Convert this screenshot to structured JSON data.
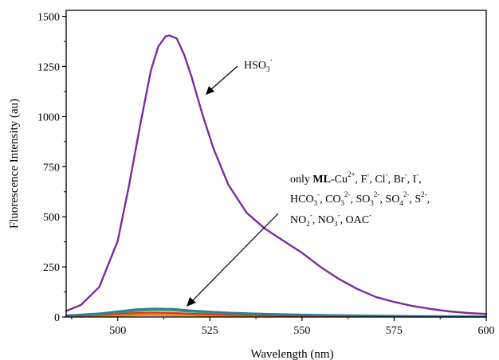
{
  "chart_data": {
    "type": "line",
    "xlabel": "Wavelength (nm)",
    "ylabel": "Fluorescence Intensity (au)",
    "xlim": [
      486,
      600
    ],
    "ylim": [
      0,
      1530
    ],
    "x_ticks": [
      500,
      525,
      550,
      575,
      600
    ],
    "y_ticks": [
      0,
      250,
      500,
      750,
      1000,
      1250,
      1500
    ],
    "grid": false,
    "series": [
      {
        "name": "HSO3-",
        "color": "#7b2c9e",
        "x": [
          486,
          490,
          495,
          500,
          503,
          506,
          509,
          511,
          513,
          514,
          516,
          518,
          520,
          523,
          526,
          530,
          535,
          540,
          545,
          550,
          555,
          560,
          565,
          570,
          575,
          580,
          585,
          590,
          595,
          600
        ],
        "y": [
          30,
          60,
          150,
          380,
          650,
          950,
          1230,
          1350,
          1400,
          1405,
          1390,
          1310,
          1200,
          1010,
          840,
          660,
          520,
          440,
          380,
          320,
          250,
          190,
          140,
          100,
          75,
          55,
          40,
          28,
          20,
          15
        ]
      },
      {
        "name": "",
        "color": "#2a7a9c",
        "x": [
          486,
          495,
          500,
          505,
          510,
          515,
          520,
          530,
          540,
          550,
          560,
          570,
          580,
          590,
          600
        ],
        "y": [
          8,
          18,
          28,
          38,
          42,
          40,
          32,
          22,
          16,
          12,
          9,
          7,
          5,
          4,
          3
        ]
      },
      {
        "name": "",
        "color": "#3a9a6a",
        "x": [
          486,
          495,
          500,
          505,
          510,
          515,
          520,
          530,
          540,
          550,
          560,
          570,
          580,
          590,
          600
        ],
        "y": [
          6,
          14,
          22,
          30,
          34,
          32,
          26,
          18,
          13,
          10,
          8,
          6,
          4,
          3,
          2
        ]
      },
      {
        "name": "",
        "color": "#e0301e",
        "x": [
          486,
          495,
          500,
          505,
          510,
          515,
          520,
          530,
          540,
          550,
          560,
          570,
          580,
          590,
          600
        ],
        "y": [
          4,
          10,
          15,
          20,
          22,
          20,
          16,
          11,
          8,
          6,
          5,
          4,
          3,
          2,
          2
        ]
      },
      {
        "name": "",
        "color": "#f08a1c",
        "x": [
          486,
          495,
          500,
          505,
          510,
          515,
          520,
          530,
          540,
          550,
          560,
          570,
          580,
          590,
          600
        ],
        "y": [
          3,
          6,
          9,
          12,
          13,
          12,
          10,
          7,
          5,
          4,
          3,
          3,
          2,
          2,
          1
        ]
      },
      {
        "name": "",
        "color": "#c8a02a",
        "x": [
          486,
          495,
          500,
          505,
          510,
          515,
          520,
          530,
          540,
          550,
          560,
          570,
          580,
          590,
          600
        ],
        "y": [
          2,
          4,
          6,
          8,
          9,
          8,
          7,
          5,
          4,
          3,
          2,
          2,
          1,
          1,
          1
        ]
      }
    ],
    "annotations": [
      {
        "id": "hso3",
        "text": "HSO3-"
      },
      {
        "id": "others",
        "lines": [
          "only ML-Cu2+, F-, Cl-, Br-, I-,",
          "HCO3-, CO32-, SO32-, SO42-, S2-,",
          "NO2-, NO3-, OAC-"
        ]
      }
    ]
  },
  "annotation_parts": {
    "hso3": {
      "base": "HSO",
      "sub": "3",
      "sup": "-"
    },
    "others_line1": [
      "only ",
      "ML",
      "-Cu",
      "2+",
      ", F",
      "-",
      ", Cl",
      "-",
      ", Br",
      "-",
      ", I",
      "-",
      ","
    ],
    "others_line2": [
      "HCO",
      "3",
      "-",
      ", CO",
      "3",
      "2-",
      ",  SO",
      "3",
      "2-",
      ", SO",
      "4",
      "2-",
      ", S",
      "2-",
      ","
    ],
    "others_line3": [
      "NO",
      "2",
      "-",
      ",  NO",
      "3",
      "-",
      ", OAC",
      "-"
    ]
  }
}
